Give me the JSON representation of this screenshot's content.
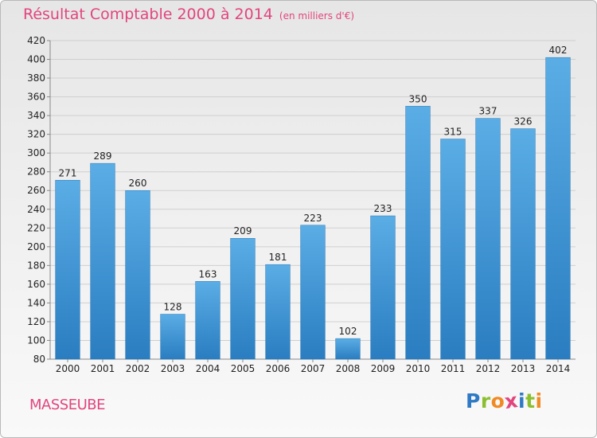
{
  "title": "Résultat Comptable 2000 à 2014",
  "subtitle": "(en milliers d'€)",
  "commune": "MASSEUBE",
  "logo": {
    "letters": [
      {
        "char": "P",
        "color": "#2f79c5"
      },
      {
        "char": "r",
        "color": "#8cbf2f"
      },
      {
        "char": "o",
        "color": "#f08a24"
      },
      {
        "char": "x",
        "color": "#e2457e"
      },
      {
        "char": "i",
        "color": "#2f79c5"
      },
      {
        "char": "t",
        "color": "#8cbf2f"
      },
      {
        "char": "i",
        "color": "#f08a24"
      }
    ]
  },
  "colors": {
    "title": "#e2457e",
    "bar_light": "#5aade5",
    "bar_dark": "#2a7dc0",
    "grid": "#cfcfcf",
    "text": "#222222"
  },
  "chart_data": {
    "type": "bar",
    "categories": [
      "2000",
      "2001",
      "2002",
      "2003",
      "2004",
      "2005",
      "2006",
      "2007",
      "2008",
      "2009",
      "2010",
      "2011",
      "2012",
      "2013",
      "2014"
    ],
    "values": [
      271,
      289,
      260,
      128,
      163,
      209,
      181,
      223,
      102,
      233,
      350,
      315,
      337,
      326,
      402
    ],
    "ylim": [
      80,
      420
    ],
    "yticks": [
      80,
      100,
      120,
      140,
      160,
      180,
      200,
      220,
      240,
      260,
      280,
      300,
      320,
      340,
      360,
      380,
      400,
      420
    ],
    "grid": true,
    "data_labels": true
  }
}
